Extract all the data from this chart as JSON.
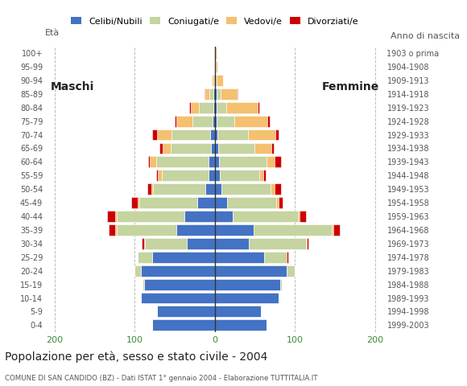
{
  "age_groups": [
    "0-4",
    "5-9",
    "10-14",
    "15-19",
    "20-24",
    "25-29",
    "30-34",
    "35-39",
    "40-44",
    "45-49",
    "50-54",
    "55-59",
    "60-64",
    "65-69",
    "70-74",
    "75-79",
    "80-84",
    "85-89",
    "90-94",
    "95-99",
    "100+"
  ],
  "birth_years": [
    "1999-2003",
    "1994-1998",
    "1989-1993",
    "1984-1988",
    "1979-1983",
    "1974-1978",
    "1969-1973",
    "1964-1968",
    "1959-1963",
    "1954-1958",
    "1949-1953",
    "1944-1948",
    "1939-1943",
    "1934-1938",
    "1929-1933",
    "1924-1928",
    "1919-1923",
    "1914-1918",
    "1909-1913",
    "1904-1908",
    "1903 o prima"
  ],
  "male": {
    "celibe": [
      78,
      72,
      92,
      88,
      92,
      78,
      35,
      48,
      38,
      22,
      12,
      8,
      8,
      5,
      6,
      3,
      2,
      2,
      0,
      0,
      0
    ],
    "coniugato": [
      0,
      0,
      0,
      2,
      8,
      18,
      52,
      75,
      85,
      72,
      65,
      58,
      65,
      50,
      48,
      25,
      18,
      5,
      2,
      1,
      0
    ],
    "vedovo": [
      0,
      0,
      0,
      0,
      0,
      0,
      1,
      2,
      2,
      2,
      2,
      5,
      8,
      10,
      18,
      20,
      10,
      5,
      2,
      0,
      0
    ],
    "divorziato": [
      0,
      0,
      0,
      0,
      0,
      0,
      3,
      8,
      10,
      8,
      5,
      2,
      2,
      4,
      6,
      2,
      2,
      1,
      0,
      0,
      0
    ]
  },
  "female": {
    "celibe": [
      65,
      58,
      80,
      82,
      90,
      62,
      42,
      48,
      22,
      15,
      8,
      6,
      5,
      4,
      3,
      2,
      2,
      2,
      0,
      0,
      0
    ],
    "coniugato": [
      0,
      0,
      0,
      2,
      10,
      28,
      72,
      98,
      82,
      62,
      62,
      50,
      60,
      45,
      38,
      22,
      12,
      5,
      2,
      1,
      0
    ],
    "vedovo": [
      0,
      0,
      0,
      0,
      0,
      0,
      1,
      2,
      2,
      3,
      5,
      5,
      10,
      22,
      35,
      42,
      40,
      20,
      8,
      2,
      2
    ],
    "divorziato": [
      0,
      0,
      0,
      0,
      0,
      2,
      2,
      8,
      8,
      5,
      8,
      3,
      8,
      3,
      4,
      3,
      2,
      1,
      0,
      0,
      0
    ]
  },
  "colors": {
    "celibe": "#4472c4",
    "coniugato": "#c5d4a0",
    "vedovo": "#f5c06f",
    "divorziato": "#cc0000"
  },
  "legend_labels": [
    "Celibi/Nubili",
    "Coniugati/e",
    "Vedovi/e",
    "Divorziati/e"
  ],
  "title": "Popolazione per età, sesso e stato civile - 2004",
  "subtitle": "COMUNE DI SAN CANDIDO (BZ) - Dati ISTAT 1° gennaio 2004 - Elaborazione TUTTITALIA.IT",
  "ylabel_left": "Età",
  "ylabel_right": "Anno di nascita",
  "xlabel_left": "Maschi",
  "xlabel_right": "Femmine",
  "xlim": 210,
  "background_color": "#ffffff",
  "grid_color": "#bbbbbb"
}
